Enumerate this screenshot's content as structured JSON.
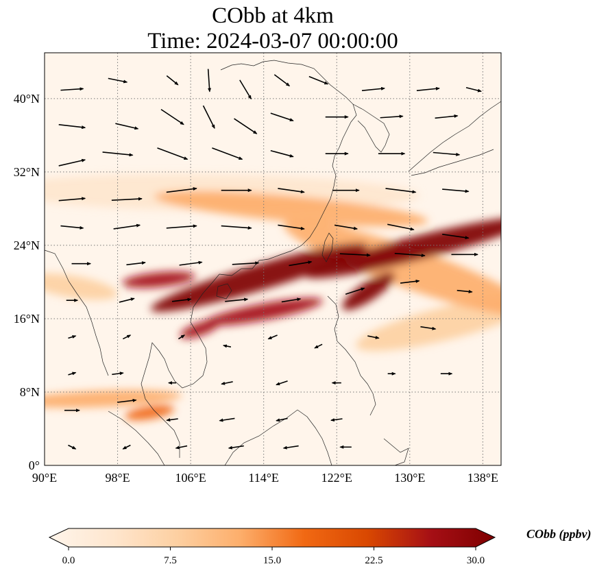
{
  "title": {
    "line1": "CObb at 4km",
    "line2": "Time: 2024-03-07 00:00:00"
  },
  "map": {
    "lon_range": [
      90,
      140
    ],
    "lat_range": [
      0,
      45
    ],
    "lon_ticks": [
      {
        "value": 90,
        "label": "90°E"
      },
      {
        "value": 98,
        "label": "98°E"
      },
      {
        "value": 106,
        "label": "106°E"
      },
      {
        "value": 114,
        "label": "114°E"
      },
      {
        "value": 122,
        "label": "122°E"
      },
      {
        "value": 130,
        "label": "130°E"
      },
      {
        "value": 138,
        "label": "138°E"
      }
    ],
    "lat_ticks": [
      {
        "value": 0,
        "label": "0°"
      },
      {
        "value": 8,
        "label": "8°N"
      },
      {
        "value": 16,
        "label": "16°N"
      },
      {
        "value": 24,
        "label": "24°N"
      },
      {
        "value": 32,
        "label": "32°N"
      },
      {
        "value": 40,
        "label": "40°N"
      }
    ],
    "gridlines": true,
    "gridline_style": "dotted",
    "background_color": "#fff5eb"
  },
  "colorbar": {
    "label": "CObb (ppbv)",
    "min": 0.0,
    "max": 30.0,
    "extend": "both",
    "ticks": [
      {
        "value": 0.0,
        "label": "0.0"
      },
      {
        "value": 7.5,
        "label": "7.5"
      },
      {
        "value": 15.0,
        "label": "15.0"
      },
      {
        "value": 22.5,
        "label": "22.5"
      },
      {
        "value": 30.0,
        "label": "30.0"
      }
    ],
    "colors": [
      "#fff5eb",
      "#fee6ce",
      "#fdd0a2",
      "#fdae6b",
      "#f16913",
      "#d94801",
      "#a50f15",
      "#7f0000"
    ]
  },
  "chart_data": {
    "type": "heatmap",
    "variable": "CObb",
    "units": "ppbv",
    "level": "4km",
    "time": "2024-03-07 00:00:00",
    "plumes": [
      {
        "lon": [
          105,
          122
        ],
        "lat": [
          18,
          23
        ],
        "value": 30,
        "spread_lon": 3.5,
        "spread_lat": 1.4
      },
      {
        "lon": [
          122,
          140
        ],
        "lat": [
          21.5,
          26
        ],
        "value": 28,
        "spread_lon": 3.5,
        "spread_lat": 1.3
      },
      {
        "lon": [
          110,
          118
        ],
        "lat": [
          16,
          17.5
        ],
        "value": 26,
        "spread_lon": 2.5,
        "spread_lat": 0.9
      },
      {
        "lon": [
          124,
          127
        ],
        "lat": [
          18,
          20
        ],
        "value": 28,
        "spread_lon": 1.6,
        "spread_lat": 1.0
      },
      {
        "lon": [
          106,
          108
        ],
        "lat": [
          14.5,
          15.2
        ],
        "value": 24,
        "spread_lon": 1.2,
        "spread_lat": 0.7
      },
      {
        "lon": [
          100,
          105
        ],
        "lat": [
          20,
          20.5
        ],
        "value": 27,
        "spread_lon": 1.5,
        "spread_lat": 0.8
      },
      {
        "lon": [
          106,
          128
        ],
        "lat": [
          29,
          27
        ],
        "value": 14,
        "spread_lon": 4,
        "spread_lat": 1.4
      },
      {
        "lon": [
          120,
          140
        ],
        "lat": [
          25,
          18
        ],
        "value": 12,
        "spread_lon": 4,
        "spread_lat": 2.2
      },
      {
        "lon": [
          90,
          102
        ],
        "lat": [
          7,
          7.5
        ],
        "value": 13,
        "spread_lon": 3,
        "spread_lat": 0.9
      },
      {
        "lon": [
          100,
          103
        ],
        "lat": [
          5.5,
          6
        ],
        "value": 16,
        "spread_lon": 1.2,
        "spread_lat": 0.7
      },
      {
        "lon": [
          128,
          140
        ],
        "lat": [
          14,
          17
        ],
        "value": 8,
        "spread_lon": 4,
        "spread_lat": 1.8
      },
      {
        "lon": [
          90,
          96
        ],
        "lat": [
          20,
          19
        ],
        "value": 9,
        "spread_lon": 2,
        "spread_lat": 1.2
      },
      {
        "lon": [
          90,
          126
        ],
        "lat": [
          30,
          29.5
        ],
        "value": 6,
        "spread_lon": 5,
        "spread_lat": 2.0
      }
    ],
    "wind_vectors": [
      {
        "lon": 93,
        "lat": 41,
        "u": 3,
        "v": 0.2
      },
      {
        "lon": 98,
        "lat": 42,
        "u": 2.5,
        "v": -0.5
      },
      {
        "lon": 104,
        "lat": 42,
        "u": 1.5,
        "v": -1.2
      },
      {
        "lon": 108,
        "lat": 42,
        "u": 0.2,
        "v": -3
      },
      {
        "lon": 112,
        "lat": 41,
        "u": 1.5,
        "v": -2.5
      },
      {
        "lon": 116,
        "lat": 42,
        "u": 2,
        "v": -1.5
      },
      {
        "lon": 120,
        "lat": 42,
        "u": 2.5,
        "v": -1
      },
      {
        "lon": 126,
        "lat": 41,
        "u": 3,
        "v": 0.3
      },
      {
        "lon": 132,
        "lat": 41,
        "u": 3,
        "v": 0.3
      },
      {
        "lon": 137,
        "lat": 41,
        "u": 2,
        "v": -0.5
      },
      {
        "lon": 93,
        "lat": 37,
        "u": 3.5,
        "v": -0.4
      },
      {
        "lon": 99,
        "lat": 37,
        "u": 3,
        "v": -0.7
      },
      {
        "lon": 104,
        "lat": 38,
        "u": 3,
        "v": -2
      },
      {
        "lon": 108,
        "lat": 38,
        "u": 1.5,
        "v": -3
      },
      {
        "lon": 112,
        "lat": 37,
        "u": 3,
        "v": -2
      },
      {
        "lon": 116,
        "lat": 38,
        "u": 3,
        "v": -1
      },
      {
        "lon": 122,
        "lat": 38,
        "u": 3,
        "v": 0
      },
      {
        "lon": 128,
        "lat": 38,
        "u": 3,
        "v": 0.2
      },
      {
        "lon": 134,
        "lat": 38,
        "u": 3,
        "v": 0.3
      },
      {
        "lon": 93,
        "lat": 33,
        "u": 3.5,
        "v": 0.8
      },
      {
        "lon": 98,
        "lat": 34,
        "u": 4,
        "v": -0.4
      },
      {
        "lon": 104,
        "lat": 34,
        "u": 4,
        "v": -1.5
      },
      {
        "lon": 110,
        "lat": 34,
        "u": 4,
        "v": -1.5
      },
      {
        "lon": 116,
        "lat": 34,
        "u": 3,
        "v": -0.8
      },
      {
        "lon": 122,
        "lat": 34,
        "u": 3,
        "v": 0
      },
      {
        "lon": 128,
        "lat": 34,
        "u": 3.5,
        "v": 0
      },
      {
        "lon": 134,
        "lat": 34,
        "u": 3.5,
        "v": -0.3
      },
      {
        "lon": 93,
        "lat": 29,
        "u": 3.5,
        "v": 0.3
      },
      {
        "lon": 99,
        "lat": 29,
        "u": 4,
        "v": 0.2
      },
      {
        "lon": 105,
        "lat": 30,
        "u": 4,
        "v": 0.5
      },
      {
        "lon": 111,
        "lat": 30,
        "u": 4,
        "v": 0
      },
      {
        "lon": 117,
        "lat": 30,
        "u": 3.5,
        "v": -0.5
      },
      {
        "lon": 123,
        "lat": 30,
        "u": 3.5,
        "v": 0
      },
      {
        "lon": 129,
        "lat": 30,
        "u": 4,
        "v": -0.5
      },
      {
        "lon": 135,
        "lat": 30,
        "u": 3.5,
        "v": -0.3
      },
      {
        "lon": 93,
        "lat": 26,
        "u": 3,
        "v": -0.3
      },
      {
        "lon": 99,
        "lat": 26,
        "u": 3.5,
        "v": 0.5
      },
      {
        "lon": 105,
        "lat": 26,
        "u": 4,
        "v": 0.3
      },
      {
        "lon": 111,
        "lat": 26,
        "u": 4,
        "v": -0.3
      },
      {
        "lon": 117,
        "lat": 26,
        "u": 3.5,
        "v": -0.5
      },
      {
        "lon": 123,
        "lat": 26,
        "u": 3,
        "v": -0.5
      },
      {
        "lon": 129,
        "lat": 26,
        "u": 3.5,
        "v": -0.7
      },
      {
        "lon": 135,
        "lat": 25,
        "u": 3.5,
        "v": -0.5
      },
      {
        "lon": 94,
        "lat": 22,
        "u": 2.5,
        "v": 0
      },
      {
        "lon": 100,
        "lat": 22,
        "u": 2.5,
        "v": 0.3
      },
      {
        "lon": 106,
        "lat": 22,
        "u": 3,
        "v": 0.4
      },
      {
        "lon": 112,
        "lat": 22,
        "u": 3.5,
        "v": 0.2
      },
      {
        "lon": 118,
        "lat": 22,
        "u": 3,
        "v": 0.5
      },
      {
        "lon": 124,
        "lat": 23,
        "u": 4,
        "v": -0.2
      },
      {
        "lon": 130,
        "lat": 23,
        "u": 4,
        "v": -0.3
      },
      {
        "lon": 136,
        "lat": 23,
        "u": 3.5,
        "v": 0
      },
      {
        "lon": 93,
        "lat": 18,
        "u": 1.5,
        "v": 0
      },
      {
        "lon": 99,
        "lat": 18,
        "u": 2,
        "v": 0.5
      },
      {
        "lon": 105,
        "lat": 18,
        "u": 2.5,
        "v": 0.3
      },
      {
        "lon": 111,
        "lat": 18,
        "u": 3,
        "v": 0.3
      },
      {
        "lon": 117,
        "lat": 18,
        "u": 2.5,
        "v": 0.4
      },
      {
        "lon": 124,
        "lat": 19,
        "u": 2.5,
        "v": 0.8
      },
      {
        "lon": 130,
        "lat": 20,
        "u": 2.5,
        "v": 0.3
      },
      {
        "lon": 136,
        "lat": 19,
        "u": 2,
        "v": -0.2
      },
      {
        "lon": 93,
        "lat": 14,
        "u": 1,
        "v": 0.3
      },
      {
        "lon": 99,
        "lat": 14,
        "u": 1,
        "v": 0.5
      },
      {
        "lon": 105,
        "lat": 14,
        "u": 0.8,
        "v": 0.5
      },
      {
        "lon": 110,
        "lat": 13,
        "u": -1,
        "v": 0.2
      },
      {
        "lon": 115,
        "lat": 14,
        "u": -1.2,
        "v": -0.5
      },
      {
        "lon": 120,
        "lat": 13,
        "u": -1,
        "v": -0.5
      },
      {
        "lon": 126,
        "lat": 14,
        "u": 1.5,
        "v": -0.3
      },
      {
        "lon": 132,
        "lat": 15,
        "u": 2,
        "v": -0.3
      },
      {
        "lon": 93,
        "lat": 10,
        "u": 1,
        "v": 0.3
      },
      {
        "lon": 98,
        "lat": 10,
        "u": 1.5,
        "v": 0.2
      },
      {
        "lon": 104,
        "lat": 9,
        "u": -1,
        "v": 0
      },
      {
        "lon": 110,
        "lat": 9,
        "u": -1.5,
        "v": -0.3
      },
      {
        "lon": 116,
        "lat": 9,
        "u": -1.5,
        "v": -0.5
      },
      {
        "lon": 122,
        "lat": 9,
        "u": -1.2,
        "v": 0
      },
      {
        "lon": 128,
        "lat": 10,
        "u": 1,
        "v": 0
      },
      {
        "lon": 134,
        "lat": 10,
        "u": 1.5,
        "v": 0
      },
      {
        "lon": 93,
        "lat": 6,
        "u": 2,
        "v": 0
      },
      {
        "lon": 99,
        "lat": 7,
        "u": 2.5,
        "v": 0.3
      },
      {
        "lon": 104,
        "lat": 5,
        "u": -1.5,
        "v": -0.2
      },
      {
        "lon": 110,
        "lat": 5,
        "u": -2,
        "v": -0.3
      },
      {
        "lon": 116,
        "lat": 5,
        "u": -1.5,
        "v": -0.3
      },
      {
        "lon": 122,
        "lat": 5,
        "u": -1.5,
        "v": -0.2
      },
      {
        "lon": 93,
        "lat": 2,
        "u": 1,
        "v": -0.5
      },
      {
        "lon": 99,
        "lat": 2,
        "u": -1,
        "v": -0.5
      },
      {
        "lon": 105,
        "lat": 2,
        "u": -1.5,
        "v": -0.3
      },
      {
        "lon": 111,
        "lat": 2,
        "u": -2,
        "v": -0.3
      },
      {
        "lon": 117,
        "lat": 2,
        "u": -2,
        "v": -0.3
      },
      {
        "lon": 123,
        "lat": 2,
        "u": -1.5,
        "v": 0
      }
    ]
  }
}
